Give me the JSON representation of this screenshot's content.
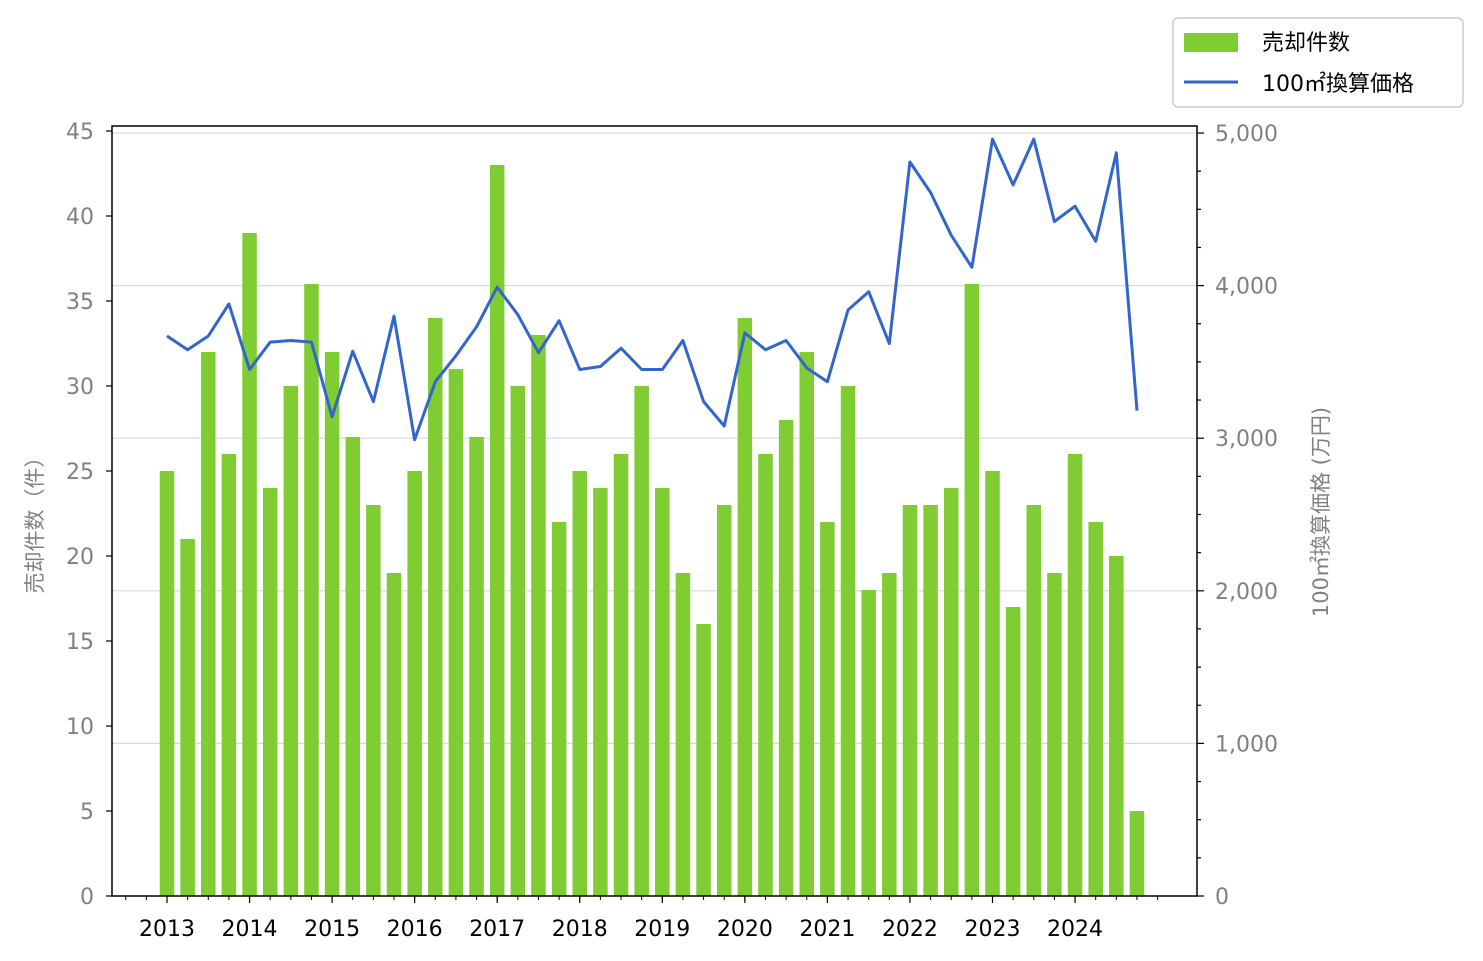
{
  "chart_data": {
    "type": "bar+line",
    "x_ticks": [
      "2013",
      "2014",
      "2015",
      "2016",
      "2017",
      "2018",
      "2019",
      "2020",
      "2021",
      "2022",
      "2023",
      "2024"
    ],
    "y_left": {
      "label": "売却件数（件）",
      "ylim": [
        0,
        45
      ],
      "ticks": [
        0,
        5,
        10,
        15,
        20,
        25,
        30,
        35,
        40,
        45
      ]
    },
    "y_right": {
      "label": "100㎡換算価格 (万円)",
      "ylim": [
        0,
        5000
      ],
      "ticks": [
        0,
        1000,
        2000,
        3000,
        4000,
        5000
      ],
      "tick_labels": [
        "0",
        "1,000",
        "2,000",
        "3,000",
        "4,000",
        "5,000"
      ]
    },
    "grid": "horizontal (right axis)",
    "legend_position": "top-right",
    "series": [
      {
        "name": "売却件数",
        "type": "bar",
        "color": "#7fcc33",
        "x": [
          2013.0,
          2013.25,
          2013.5,
          2013.75,
          2014.0,
          2014.25,
          2014.5,
          2014.75,
          2015.0,
          2015.25,
          2015.5,
          2015.75,
          2016.0,
          2016.25,
          2016.5,
          2016.75,
          2017.0,
          2017.25,
          2017.5,
          2017.75,
          2018.0,
          2018.25,
          2018.5,
          2018.75,
          2019.0,
          2019.25,
          2019.5,
          2019.75,
          2020.0,
          2020.25,
          2020.5,
          2020.75,
          2021.0,
          2021.25,
          2021.5,
          2021.75,
          2022.0,
          2022.25,
          2022.5,
          2022.75,
          2023.0,
          2023.25,
          2023.5,
          2023.75,
          2024.0,
          2024.25,
          2024.5,
          2024.75
        ],
        "values": [
          25,
          21,
          32,
          26,
          39,
          24,
          30,
          36,
          32,
          27,
          23,
          19,
          25,
          34,
          31,
          27,
          43,
          30,
          33,
          22,
          25,
          24,
          26,
          30,
          24,
          19,
          16,
          23,
          34,
          26,
          28,
          32,
          22,
          30,
          18,
          19,
          23,
          23,
          24,
          36,
          25,
          17,
          23,
          19,
          26,
          22,
          20,
          5
        ]
      },
      {
        "name": "100㎡換算価格",
        "type": "line",
        "color": "#3366cc",
        "x": [
          2013.0,
          2013.25,
          2013.5,
          2013.75,
          2014.0,
          2014.25,
          2014.5,
          2014.75,
          2015.0,
          2015.25,
          2015.5,
          2015.75,
          2016.0,
          2016.25,
          2016.5,
          2016.75,
          2017.0,
          2017.25,
          2017.5,
          2017.75,
          2018.0,
          2018.25,
          2018.5,
          2018.75,
          2019.0,
          2019.25,
          2019.5,
          2019.75,
          2020.0,
          2020.25,
          2020.5,
          2020.75,
          2021.0,
          2021.25,
          2021.5,
          2021.75,
          2022.0,
          2022.25,
          2022.5,
          2022.75,
          2023.0,
          2023.25,
          2023.5,
          2023.75,
          2024.0,
          2024.25,
          2024.5,
          2024.75
        ],
        "values": [
          3670,
          3580,
          3670,
          3880,
          3450,
          3630,
          3640,
          3630,
          3140,
          3570,
          3240,
          3800,
          2990,
          3370,
          3540,
          3730,
          3990,
          3810,
          3560,
          3770,
          3450,
          3470,
          3590,
          3450,
          3450,
          3640,
          3240,
          3080,
          3690,
          3580,
          3640,
          3460,
          3370,
          3840,
          3960,
          3620,
          4810,
          4610,
          4330,
          4120,
          4960,
          4660,
          4960,
          4420,
          4520,
          4290,
          4870,
          3180
        ]
      }
    ]
  }
}
